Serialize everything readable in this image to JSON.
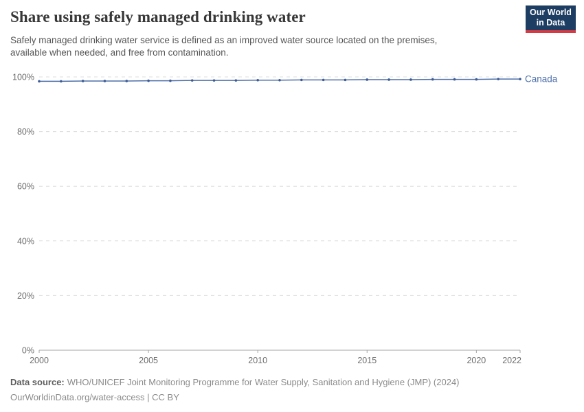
{
  "header": {
    "title": "Share using safely managed drinking water",
    "subtitle": "Safely managed drinking water service is defined as an improved water source located on the premises, available when needed, and free from contamination.",
    "logo": {
      "line1": "Our World",
      "line2": "in Data",
      "bg_color": "#1d3d63",
      "accent_color": "#d43b45",
      "text_color": "#ffffff"
    }
  },
  "chart_data": {
    "type": "line",
    "title": "Share using safely managed drinking water",
    "x": [
      2000,
      2001,
      2002,
      2003,
      2004,
      2005,
      2006,
      2007,
      2008,
      2009,
      2010,
      2011,
      2012,
      2013,
      2014,
      2015,
      2016,
      2017,
      2018,
      2019,
      2020,
      2021,
      2022
    ],
    "series": [
      {
        "name": "Canada",
        "color": "#4c6ea9",
        "marker_color": "#3d5c94",
        "values": [
          98.4,
          98.4,
          98.5,
          98.5,
          98.5,
          98.6,
          98.6,
          98.7,
          98.7,
          98.7,
          98.8,
          98.8,
          98.9,
          98.9,
          98.9,
          99.0,
          99.0,
          99.0,
          99.1,
          99.1,
          99.1,
          99.2,
          99.2
        ]
      }
    ],
    "xlabel": "",
    "ylabel": "",
    "xlim": [
      2000,
      2022
    ],
    "ylim": [
      0,
      100
    ],
    "yticks": [
      0,
      20,
      40,
      60,
      80,
      100
    ],
    "ytick_labels": [
      "0%",
      "20%",
      "40%",
      "60%",
      "80%",
      "100%"
    ],
    "xticks": [
      2000,
      2005,
      2010,
      2015,
      2020,
      2022
    ],
    "grid": "horizontal-dashed",
    "grid_color": "#dcdcdc",
    "axis_color": "#a5a5a5",
    "tick_label_color": "#6d6d6d",
    "legend_position": "line-end-label"
  },
  "footer": {
    "source_label": "Data source:",
    "source_text": "WHO/UNICEF Joint Monitoring Programme for Water Supply, Sanitation and Hygiene (JMP) (2024)",
    "link_line": "OurWorldinData.org/water-access | CC BY"
  }
}
